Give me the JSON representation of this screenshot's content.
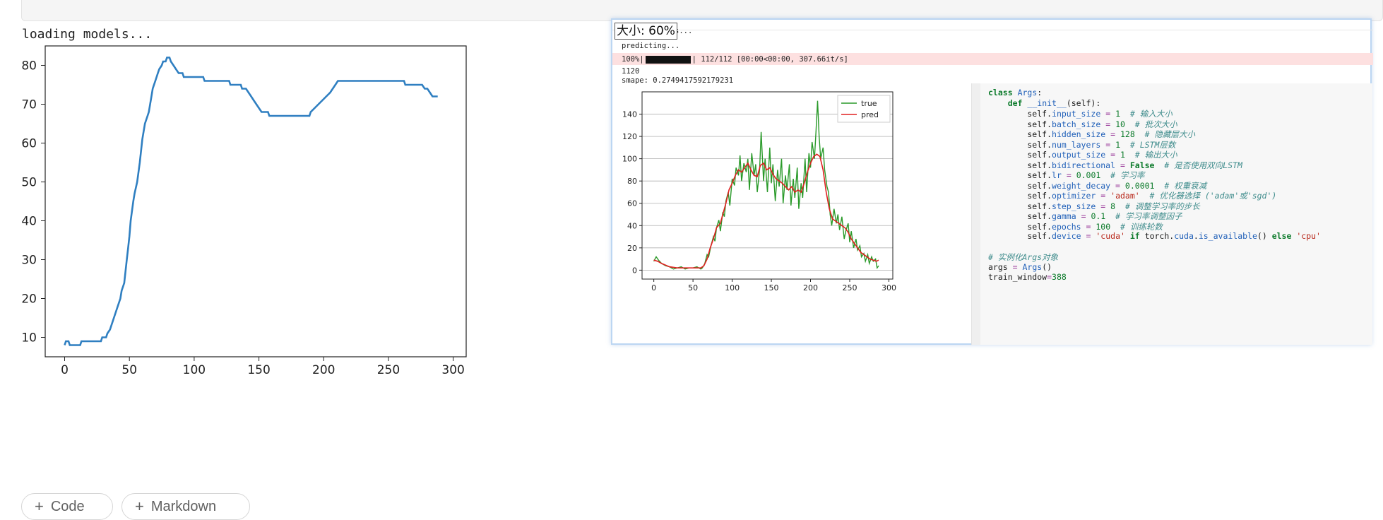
{
  "output": {
    "loading_text": "loading models..."
  },
  "main_chart": {
    "x_ticks": [
      "0",
      "50",
      "100",
      "150",
      "200",
      "250",
      "300"
    ],
    "y_ticks": [
      "10",
      "20",
      "30",
      "40",
      "50",
      "60",
      "70",
      "80"
    ]
  },
  "buttons": {
    "code_label": "Code",
    "markdown_label": "Markdown"
  },
  "overlay": {
    "zoom_label": "大小: 60%",
    "line_partial": "s...",
    "predicting": "predicting...",
    "progress_prefix": "100%|",
    "progress_suffix": "| 112/112 [00:00<00:00, 307.66it/s]",
    "progress_value": 1.0,
    "count": "1120",
    "smape": "smape: 0.2749417592179231",
    "chart_x_ticks": [
      "0",
      "50",
      "100",
      "150",
      "200",
      "250",
      "300"
    ],
    "chart_y_ticks": [
      "0",
      "20",
      "40",
      "60",
      "80",
      "100",
      "120",
      "140"
    ],
    "legend_true": "true",
    "legend_pred": "pred"
  },
  "code": {
    "lines": [
      "class Args:",
      "    def __init__(self):",
      "        self.input_size = 1  # 输入大小",
      "        self.batch_size = 10  # 批次大小",
      "        self.hidden_size = 128  # 隐藏层大小",
      "        self.num_layers = 1  # LSTM层数",
      "        self.output_size = 1  # 输出大小",
      "        self.bidirectional = False  # 是否使用双向LSTM",
      "        self.lr = 0.001  # 学习率",
      "        self.weight_decay = 0.0001  # 权重衰减",
      "        self.optimizer = 'adam'  # 优化器选择 ('adam'或'sgd')",
      "        self.step_size = 8  # 调整学习率的步长",
      "        self.gamma = 0.1  # 学习率调整因子",
      "        self.epochs = 100  # 训练轮数",
      "        self.device = 'cuda' if torch.cuda.is_available() else 'cpu'",
      "",
      "# 实例化Args对象",
      "args = Args()",
      "train_window=388"
    ]
  },
  "colors": {
    "main_line": "#2f7fc1",
    "true_line": "#2a9a2a",
    "pred_line": "#e02020"
  },
  "chart_data": [
    {
      "type": "line",
      "xlim": [
        -15,
        310
      ],
      "ylim": [
        5,
        85
      ],
      "x_ticks": [
        0,
        50,
        100,
        150,
        200,
        250,
        300
      ],
      "y_ticks": [
        10,
        20,
        30,
        40,
        50,
        60,
        70,
        80
      ],
      "series": [
        {
          "points": [
            [
              0,
              8
            ],
            [
              1,
              9
            ],
            [
              3,
              9
            ],
            [
              4,
              8
            ],
            [
              12,
              8
            ],
            [
              13,
              9
            ],
            [
              28,
              9
            ],
            [
              29,
              10
            ],
            [
              32,
              10
            ],
            [
              33,
              11
            ],
            [
              35,
              12
            ],
            [
              38,
              15
            ],
            [
              41,
              18
            ],
            [
              43,
              20
            ],
            [
              44,
              22
            ],
            [
              46,
              24
            ],
            [
              48,
              30
            ],
            [
              49,
              33
            ],
            [
              50,
              36
            ],
            [
              51,
              40
            ],
            [
              53,
              45
            ],
            [
              54,
              47
            ],
            [
              56,
              50
            ],
            [
              58,
              55
            ],
            [
              60,
              61
            ],
            [
              62,
              65
            ],
            [
              64,
              67
            ],
            [
              65,
              68
            ],
            [
              67,
              72
            ],
            [
              68,
              74
            ],
            [
              70,
              76
            ],
            [
              72,
              78
            ],
            [
              73,
              79
            ],
            [
              75,
              80
            ],
            [
              76,
              81
            ],
            [
              78,
              81
            ],
            [
              79,
              82
            ],
            [
              81,
              82
            ],
            [
              82,
              81
            ],
            [
              84,
              80
            ],
            [
              86,
              79
            ],
            [
              88,
              78
            ],
            [
              91,
              78
            ],
            [
              92,
              77
            ],
            [
              100,
              77
            ],
            [
              107,
              77
            ],
            [
              108,
              76
            ],
            [
              127,
              76
            ],
            [
              128,
              75
            ],
            [
              136,
              75
            ],
            [
              137,
              74
            ],
            [
              140,
              74
            ],
            [
              142,
              73
            ],
            [
              144,
              72
            ],
            [
              146,
              71
            ],
            [
              148,
              70
            ],
            [
              150,
              69
            ],
            [
              152,
              68
            ],
            [
              157,
              68
            ],
            [
              158,
              67
            ],
            [
              189,
              67
            ],
            [
              190,
              68
            ],
            [
              193,
              69
            ],
            [
              196,
              70
            ],
            [
              199,
              71
            ],
            [
              202,
              72
            ],
            [
              205,
              73
            ],
            [
              207,
              74
            ],
            [
              209,
              75
            ],
            [
              211,
              76
            ],
            [
              262,
              76
            ],
            [
              263,
              75
            ],
            [
              276,
              75
            ],
            [
              278,
              74
            ],
            [
              280,
              74
            ],
            [
              282,
              73
            ],
            [
              284,
              72
            ],
            [
              288,
              72
            ]
          ]
        }
      ]
    },
    {
      "type": "line",
      "xlim": [
        -15,
        305
      ],
      "ylim": [
        -8,
        160
      ],
      "x_ticks": [
        0,
        50,
        100,
        150,
        200,
        250,
        300
      ],
      "y_ticks": [
        0,
        20,
        40,
        60,
        80,
        100,
        120,
        140
      ],
      "legend": "top-right",
      "grid": "horizontal",
      "series": [
        {
          "name": "true",
          "points": [
            [
              0,
              8
            ],
            [
              3,
              12
            ],
            [
              6,
              9
            ],
            [
              10,
              6
            ],
            [
              15,
              4
            ],
            [
              20,
              3
            ],
            [
              25,
              1
            ],
            [
              30,
              2
            ],
            [
              35,
              3
            ],
            [
              40,
              1
            ],
            [
              45,
              2
            ],
            [
              50,
              2
            ],
            [
              55,
              3
            ],
            [
              60,
              1
            ],
            [
              62,
              2
            ],
            [
              65,
              6
            ],
            [
              68,
              14
            ],
            [
              70,
              12
            ],
            [
              73,
              22
            ],
            [
              76,
              30
            ],
            [
              78,
              26
            ],
            [
              80,
              38
            ],
            [
              83,
              45
            ],
            [
              85,
              35
            ],
            [
              88,
              52
            ],
            [
              90,
              48
            ],
            [
              92,
              62
            ],
            [
              95,
              70
            ],
            [
              97,
              58
            ],
            [
              100,
              82
            ],
            [
              103,
              76
            ],
            [
              105,
              92
            ],
            [
              108,
              85
            ],
            [
              110,
              103
            ],
            [
              112,
              80
            ],
            [
              115,
              96
            ],
            [
              118,
              88
            ],
            [
              120,
              100
            ],
            [
              122,
              72
            ],
            [
              125,
              105
            ],
            [
              128,
              85
            ],
            [
              130,
              95
            ],
            [
              132,
              70
            ],
            [
              135,
              90
            ],
            [
              137,
              124
            ],
            [
              140,
              80
            ],
            [
              142,
              100
            ],
            [
              145,
              70
            ],
            [
              148,
              110
            ],
            [
              150,
              78
            ],
            [
              152,
              95
            ],
            [
              155,
              62
            ],
            [
              158,
              90
            ],
            [
              160,
              75
            ],
            [
              163,
              100
            ],
            [
              165,
              60
            ],
            [
              168,
              85
            ],
            [
              170,
              72
            ],
            [
              173,
              95
            ],
            [
              175,
              58
            ],
            [
              178,
              82
            ],
            [
              180,
              65
            ],
            [
              183,
              92
            ],
            [
              185,
              55
            ],
            [
              188,
              78
            ],
            [
              190,
              65
            ],
            [
              193,
              100
            ],
            [
              195,
              70
            ],
            [
              198,
              105
            ],
            [
              200,
              92
            ],
            [
              202,
              115
            ],
            [
              205,
              100
            ],
            [
              207,
              125
            ],
            [
              209,
              152
            ],
            [
              211,
              120
            ],
            [
              213,
              100
            ],
            [
              216,
              110
            ],
            [
              218,
              90
            ],
            [
              221,
              75
            ],
            [
              223,
              70
            ],
            [
              225,
              50
            ],
            [
              227,
              40
            ],
            [
              230,
              55
            ],
            [
              233,
              42
            ],
            [
              235,
              50
            ],
            [
              237,
              36
            ],
            [
              240,
              48
            ],
            [
              243,
              28
            ],
            [
              245,
              35
            ],
            [
              248,
              42
            ],
            [
              250,
              25
            ],
            [
              252,
              35
            ],
            [
              255,
              20
            ],
            [
              258,
              28
            ],
            [
              260,
              18
            ],
            [
              263,
              22
            ],
            [
              265,
              12
            ],
            [
              268,
              15
            ],
            [
              270,
              8
            ],
            [
              273,
              14
            ],
            [
              275,
              6
            ],
            [
              278,
              12
            ],
            [
              280,
              8
            ],
            [
              283,
              10
            ],
            [
              285,
              2
            ],
            [
              287,
              4
            ]
          ]
        },
        {
          "name": "pred",
          "points": [
            [
              0,
              9
            ],
            [
              5,
              8
            ],
            [
              10,
              6
            ],
            [
              20,
              3
            ],
            [
              30,
              2
            ],
            [
              40,
              2
            ],
            [
              50,
              2
            ],
            [
              60,
              2
            ],
            [
              64,
              4
            ],
            [
              68,
              10
            ],
            [
              72,
              20
            ],
            [
              76,
              28
            ],
            [
              80,
              38
            ],
            [
              85,
              42
            ],
            [
              88,
              50
            ],
            [
              92,
              60
            ],
            [
              96,
              72
            ],
            [
              100,
              78
            ],
            [
              104,
              85
            ],
            [
              108,
              90
            ],
            [
              112,
              88
            ],
            [
              116,
              92
            ],
            [
              120,
              96
            ],
            [
              124,
              90
            ],
            [
              128,
              85
            ],
            [
              132,
              84
            ],
            [
              136,
              94
            ],
            [
              140,
              96
            ],
            [
              144,
              90
            ],
            [
              148,
              92
            ],
            [
              152,
              86
            ],
            [
              156,
              82
            ],
            [
              160,
              80
            ],
            [
              164,
              78
            ],
            [
              168,
              75
            ],
            [
              172,
              72
            ],
            [
              176,
              75
            ],
            [
              180,
              70
            ],
            [
              184,
              72
            ],
            [
              188,
              70
            ],
            [
              192,
              78
            ],
            [
              196,
              88
            ],
            [
              200,
              96
            ],
            [
              204,
              102
            ],
            [
              208,
              104
            ],
            [
              212,
              102
            ],
            [
              216,
              90
            ],
            [
              220,
              70
            ],
            [
              224,
              55
            ],
            [
              228,
              46
            ],
            [
              232,
              44
            ],
            [
              236,
              42
            ],
            [
              240,
              40
            ],
            [
              244,
              38
            ],
            [
              248,
              34
            ],
            [
              252,
              28
            ],
            [
              256,
              24
            ],
            [
              260,
              20
            ],
            [
              264,
              16
            ],
            [
              268,
              14
            ],
            [
              272,
              12
            ],
            [
              276,
              10
            ],
            [
              280,
              9
            ],
            [
              284,
              8
            ],
            [
              287,
              9
            ]
          ]
        }
      ]
    }
  ]
}
